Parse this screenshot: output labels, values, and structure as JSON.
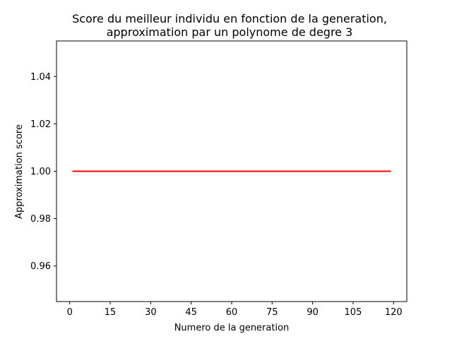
{
  "chart_data": {
    "type": "line",
    "title_line1": "Score du meilleur individu en fonction de la generation,",
    "title_line2": "approximation par un polynome de degre 3",
    "xlabel": "Numero de la generation",
    "ylabel": "Approximation score",
    "xlim": [
      -4.9,
      124.9
    ],
    "ylim": [
      0.945,
      1.055
    ],
    "xticks": [
      0,
      15,
      30,
      45,
      60,
      75,
      90,
      105,
      120
    ],
    "yticks": [
      0.96,
      0.98,
      1.0,
      1.02,
      1.04
    ],
    "ytick_labels": [
      "0.96",
      "0.98",
      "1.00",
      "1.02",
      "1.04"
    ],
    "grid": false,
    "series": [
      {
        "x": [
          1,
          119
        ],
        "y": [
          1.0,
          1.0
        ],
        "color": "#ff0000"
      }
    ]
  }
}
